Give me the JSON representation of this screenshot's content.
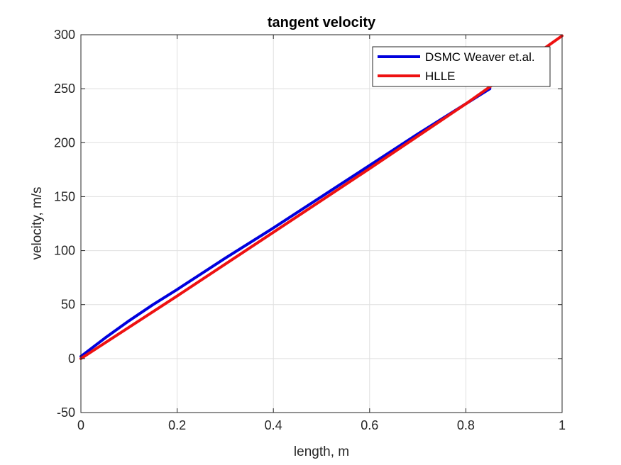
{
  "chart_data": {
    "type": "line",
    "title": "tangent velocity",
    "xlabel": "length, m",
    "ylabel": "velocity, m/s",
    "xlim": [
      0,
      1
    ],
    "ylim": [
      -50,
      300
    ],
    "xticks": [
      0,
      0.2,
      0.4,
      0.6,
      0.8,
      1
    ],
    "xtick_labels": [
      "0",
      "0.2",
      "0.4",
      "0.6",
      "0.8",
      "1"
    ],
    "yticks": [
      -50,
      0,
      50,
      100,
      150,
      200,
      250,
      300
    ],
    "ytick_labels": [
      "-50",
      "0",
      "50",
      "100",
      "150",
      "200",
      "250",
      "300"
    ],
    "grid": true,
    "legend_position": "top-right",
    "series": [
      {
        "name": "DSMC Weaver et.al.",
        "color": "#0000dd",
        "x": [
          0,
          0.05,
          0.1,
          0.15,
          0.2,
          0.3,
          0.4,
          0.5,
          0.6,
          0.7,
          0.8,
          0.85
        ],
        "y": [
          2,
          19,
          35,
          50,
          64,
          93,
          121,
          150,
          179,
          208,
          236,
          250
        ]
      },
      {
        "name": "HLLE",
        "color": "#ee1111",
        "x": [
          0,
          0.2,
          0.4,
          0.6,
          0.8,
          1
        ],
        "y": [
          0,
          58,
          117,
          176,
          236,
          299
        ]
      }
    ]
  }
}
